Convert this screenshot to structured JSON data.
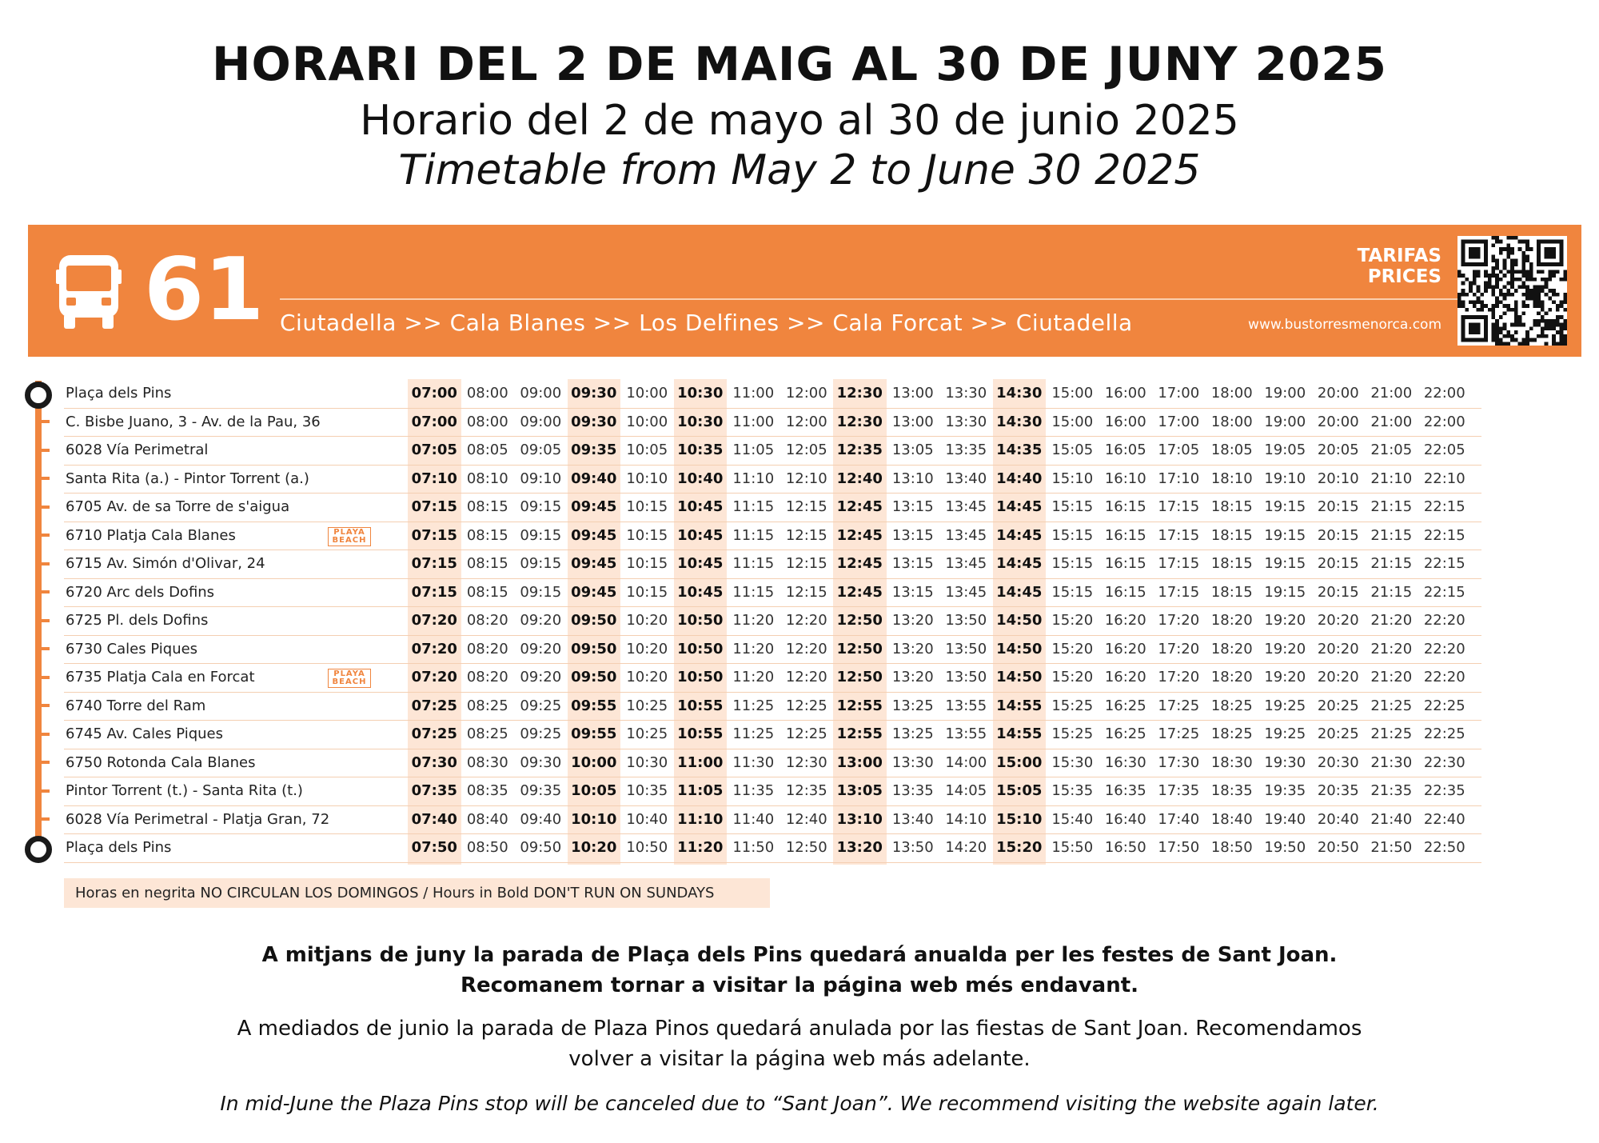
{
  "titles": {
    "catalan": "HORARI DEL 2 DE MAIG AL 30 DE JUNY 2025",
    "spanish": "Horario del 2 de mayo al 30 de junio 2025",
    "english": "Timetable from May 2 to June 30 2025"
  },
  "banner": {
    "route_number": "61",
    "route": "Ciutadella >> Cala Blanes >> Los Delfines >> Cala Forcat >> Ciutadella",
    "tarifas": "TARIFAS",
    "prices": "PRICES",
    "website": "www.bustorresmenorca.com",
    "bus_icon": "bus-icon",
    "qr_icon": "qr-code-icon",
    "accent_color": "#f0853e"
  },
  "badge": {
    "line1": "PLAYA",
    "line2": "BEACH"
  },
  "bold_columns": [
    0,
    3,
    5,
    8,
    11
  ],
  "stops": [
    {
      "name": "Plaça dels Pins",
      "beach": false,
      "times": [
        "07:00",
        "08:00",
        "09:00",
        "09:30",
        "10:00",
        "10:30",
        "11:00",
        "12:00",
        "12:30",
        "13:00",
        "13:30",
        "14:30",
        "15:00",
        "16:00",
        "17:00",
        "18:00",
        "19:00",
        "20:00",
        "21:00",
        "22:00"
      ]
    },
    {
      "name": "C. Bisbe Juano, 3 - Av. de la Pau, 36",
      "beach": false,
      "times": [
        "07:00",
        "08:00",
        "09:00",
        "09:30",
        "10:00",
        "10:30",
        "11:00",
        "12:00",
        "12:30",
        "13:00",
        "13:30",
        "14:30",
        "15:00",
        "16:00",
        "17:00",
        "18:00",
        "19:00",
        "20:00",
        "21:00",
        "22:00"
      ]
    },
    {
      "name": "6028 Vía Perimetral",
      "beach": false,
      "times": [
        "07:05",
        "08:05",
        "09:05",
        "09:35",
        "10:05",
        "10:35",
        "11:05",
        "12:05",
        "12:35",
        "13:05",
        "13:35",
        "14:35",
        "15:05",
        "16:05",
        "17:05",
        "18:05",
        "19:05",
        "20:05",
        "21:05",
        "22:05"
      ]
    },
    {
      "name": "Santa Rita (a.) - Pintor Torrent (a.)",
      "beach": false,
      "times": [
        "07:10",
        "08:10",
        "09:10",
        "09:40",
        "10:10",
        "10:40",
        "11:10",
        "12:10",
        "12:40",
        "13:10",
        "13:40",
        "14:40",
        "15:10",
        "16:10",
        "17:10",
        "18:10",
        "19:10",
        "20:10",
        "21:10",
        "22:10"
      ]
    },
    {
      "name": "6705 Av. de sa Torre de s'aigua",
      "beach": false,
      "times": [
        "07:15",
        "08:15",
        "09:15",
        "09:45",
        "10:15",
        "10:45",
        "11:15",
        "12:15",
        "12:45",
        "13:15",
        "13:45",
        "14:45",
        "15:15",
        "16:15",
        "17:15",
        "18:15",
        "19:15",
        "20:15",
        "21:15",
        "22:15"
      ]
    },
    {
      "name": "6710 Platja Cala Blanes",
      "beach": true,
      "times": [
        "07:15",
        "08:15",
        "09:15",
        "09:45",
        "10:15",
        "10:45",
        "11:15",
        "12:15",
        "12:45",
        "13:15",
        "13:45",
        "14:45",
        "15:15",
        "16:15",
        "17:15",
        "18:15",
        "19:15",
        "20:15",
        "21:15",
        "22:15"
      ]
    },
    {
      "name": "6715 Av. Simón d'Olivar, 24",
      "beach": false,
      "times": [
        "07:15",
        "08:15",
        "09:15",
        "09:45",
        "10:15",
        "10:45",
        "11:15",
        "12:15",
        "12:45",
        "13:15",
        "13:45",
        "14:45",
        "15:15",
        "16:15",
        "17:15",
        "18:15",
        "19:15",
        "20:15",
        "21:15",
        "22:15"
      ]
    },
    {
      "name": "6720 Arc dels Dofins",
      "beach": false,
      "times": [
        "07:15",
        "08:15",
        "09:15",
        "09:45",
        "10:15",
        "10:45",
        "11:15",
        "12:15",
        "12:45",
        "13:15",
        "13:45",
        "14:45",
        "15:15",
        "16:15",
        "17:15",
        "18:15",
        "19:15",
        "20:15",
        "21:15",
        "22:15"
      ]
    },
    {
      "name": "6725 Pl. dels Dofins",
      "beach": false,
      "times": [
        "07:20",
        "08:20",
        "09:20",
        "09:50",
        "10:20",
        "10:50",
        "11:20",
        "12:20",
        "12:50",
        "13:20",
        "13:50",
        "14:50",
        "15:20",
        "16:20",
        "17:20",
        "18:20",
        "19:20",
        "20:20",
        "21:20",
        "22:20"
      ]
    },
    {
      "name": "6730 Cales Piques",
      "beach": false,
      "times": [
        "07:20",
        "08:20",
        "09:20",
        "09:50",
        "10:20",
        "10:50",
        "11:20",
        "12:20",
        "12:50",
        "13:20",
        "13:50",
        "14:50",
        "15:20",
        "16:20",
        "17:20",
        "18:20",
        "19:20",
        "20:20",
        "21:20",
        "22:20"
      ]
    },
    {
      "name": "6735 Platja Cala en Forcat",
      "beach": true,
      "times": [
        "07:20",
        "08:20",
        "09:20",
        "09:50",
        "10:20",
        "10:50",
        "11:20",
        "12:20",
        "12:50",
        "13:20",
        "13:50",
        "14:50",
        "15:20",
        "16:20",
        "17:20",
        "18:20",
        "19:20",
        "20:20",
        "21:20",
        "22:20"
      ]
    },
    {
      "name": "6740 Torre del Ram",
      "beach": false,
      "times": [
        "07:25",
        "08:25",
        "09:25",
        "09:55",
        "10:25",
        "10:55",
        "11:25",
        "12:25",
        "12:55",
        "13:25",
        "13:55",
        "14:55",
        "15:25",
        "16:25",
        "17:25",
        "18:25",
        "19:25",
        "20:25",
        "21:25",
        "22:25"
      ]
    },
    {
      "name": "6745 Av. Cales Piques",
      "beach": false,
      "times": [
        "07:25",
        "08:25",
        "09:25",
        "09:55",
        "10:25",
        "10:55",
        "11:25",
        "12:25",
        "12:55",
        "13:25",
        "13:55",
        "14:55",
        "15:25",
        "16:25",
        "17:25",
        "18:25",
        "19:25",
        "20:25",
        "21:25",
        "22:25"
      ]
    },
    {
      "name": "6750 Rotonda Cala Blanes",
      "beach": false,
      "times": [
        "07:30",
        "08:30",
        "09:30",
        "10:00",
        "10:30",
        "11:00",
        "11:30",
        "12:30",
        "13:00",
        "13:30",
        "14:00",
        "15:00",
        "15:30",
        "16:30",
        "17:30",
        "18:30",
        "19:30",
        "20:30",
        "21:30",
        "22:30"
      ]
    },
    {
      "name": "Pintor Torrent (t.) - Santa Rita (t.)",
      "beach": false,
      "times": [
        "07:35",
        "08:35",
        "09:35",
        "10:05",
        "10:35",
        "11:05",
        "11:35",
        "12:35",
        "13:05",
        "13:35",
        "14:05",
        "15:05",
        "15:35",
        "16:35",
        "17:35",
        "18:35",
        "19:35",
        "20:35",
        "21:35",
        "22:35"
      ]
    },
    {
      "name": "6028 Vía Perimetral - Platja Gran, 72",
      "beach": false,
      "times": [
        "07:40",
        "08:40",
        "09:40",
        "10:10",
        "10:40",
        "11:10",
        "11:40",
        "12:40",
        "13:10",
        "13:40",
        "14:10",
        "15:10",
        "15:40",
        "16:40",
        "17:40",
        "18:40",
        "19:40",
        "20:40",
        "21:40",
        "22:40"
      ]
    },
    {
      "name": "Plaça dels Pins",
      "beach": false,
      "times": [
        "07:50",
        "08:50",
        "09:50",
        "10:20",
        "10:50",
        "11:20",
        "11:50",
        "12:50",
        "13:20",
        "13:50",
        "14:20",
        "15:20",
        "15:50",
        "16:50",
        "17:50",
        "18:50",
        "19:50",
        "20:50",
        "21:50",
        "22:50"
      ]
    }
  ],
  "note": "Horas en negrita NO CIRCULAN LOS DOMINGOS / Hours in Bold DON'T RUN ON SUNDAYS",
  "footer": {
    "catalan_line1": "A mitjans de juny la parada de Plaça dels Pins quedará anualda per les festes de Sant Joan.",
    "catalan_line2": "Recomanem tornar a visitar la página web més endavant.",
    "spanish_line1": "A mediados de junio la parada de Plaza Pinos quedará anulada por las fiestas de Sant Joan. Recomendamos",
    "spanish_line2": "volver a visitar la página web más adelante.",
    "english": "In mid-June the Plaza Pins stop will be canceled due to “Sant Joan”. We recommend visiting the website again later."
  }
}
